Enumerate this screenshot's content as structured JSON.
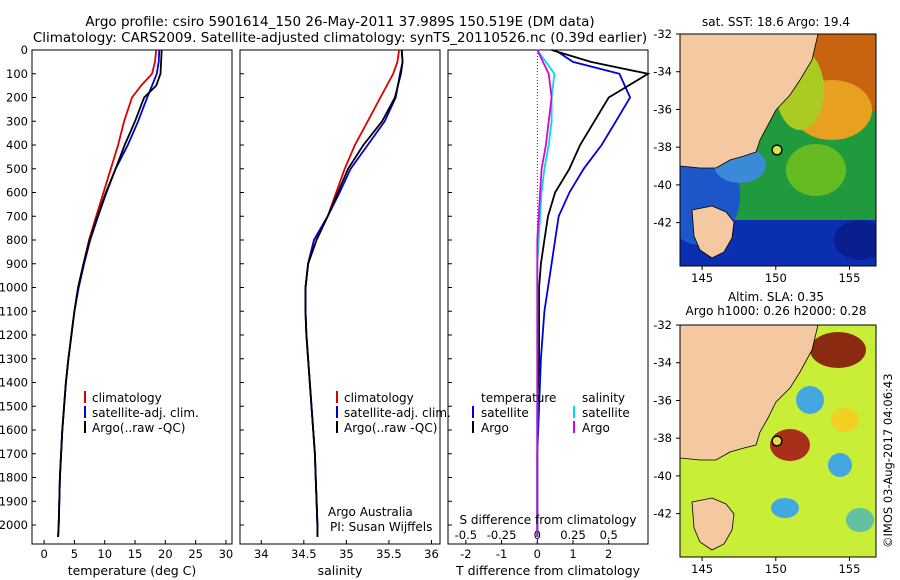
{
  "header": {
    "line1": "Argo profile: csiro 5901614_150 26-May-2011 37.989S 150.519E (DM data)",
    "line2": "Climatology: CARS2009. Satellite-adjusted climatology: synTS_20110526.nc (0.39d earlier)"
  },
  "colors": {
    "climatology": "#dd0000",
    "satellite": "#0000dd",
    "argo": "#000000",
    "salinity_satellite": "#00dddd",
    "salinity_argo": "#dd00dd",
    "land": "#f4c8a0"
  },
  "chart_data": [
    {
      "type": "line",
      "panel": "temperature",
      "xlabel": "temperature (deg C)",
      "ylabel": "",
      "xlim": [
        -2,
        31
      ],
      "ylim": [
        2080,
        0
      ],
      "x_ticks": [
        "0",
        "5",
        "10",
        "15",
        "20",
        "25",
        "30"
      ],
      "y_ticks": [
        "0",
        "100",
        "200",
        "300",
        "400",
        "500",
        "600",
        "700",
        "800",
        "900",
        "1000",
        "1100",
        "1200",
        "1300",
        "1400",
        "1500",
        "1600",
        "1700",
        "1800",
        "1900",
        "2000"
      ],
      "legend": [
        "climatology",
        "satellite-adj. clim.",
        "Argo(..raw -QC)"
      ],
      "series": [
        {
          "name": "climatology",
          "color": "#dd0000",
          "points": [
            [
              18.5,
              0
            ],
            [
              18.3,
              50
            ],
            [
              17.8,
              100
            ],
            [
              16.0,
              150
            ],
            [
              14.5,
              200
            ],
            [
              13.2,
              300
            ],
            [
              12.2,
              400
            ],
            [
              11.0,
              500
            ],
            [
              9.8,
              600
            ],
            [
              8.6,
              700
            ],
            [
              7.4,
              800
            ],
            [
              6.5,
              900
            ],
            [
              5.6,
              1000
            ],
            [
              5.0,
              1100
            ],
            [
              4.5,
              1200
            ],
            [
              4.0,
              1300
            ],
            [
              3.6,
              1400
            ],
            [
              3.3,
              1500
            ],
            [
              3.0,
              1600
            ],
            [
              2.8,
              1700
            ],
            [
              2.6,
              1800
            ],
            [
              2.5,
              1900
            ],
            [
              2.4,
              2000
            ],
            [
              2.3,
              2050
            ]
          ]
        },
        {
          "name": "satellite-adj. clim.",
          "color": "#0000dd",
          "points": [
            [
              19.0,
              0
            ],
            [
              18.9,
              50
            ],
            [
              18.6,
              100
            ],
            [
              17.8,
              150
            ],
            [
              17.0,
              200
            ],
            [
              15.5,
              300
            ],
            [
              13.8,
              400
            ],
            [
              11.8,
              500
            ],
            [
              10.3,
              600
            ],
            [
              8.9,
              700
            ],
            [
              7.6,
              800
            ],
            [
              6.6,
              900
            ],
            [
              5.7,
              1000
            ],
            [
              5.0,
              1100
            ],
            [
              4.5,
              1200
            ],
            [
              4.0,
              1300
            ],
            [
              3.6,
              1400
            ],
            [
              3.3,
              1500
            ],
            [
              3.0,
              1600
            ],
            [
              2.8,
              1700
            ],
            [
              2.6,
              1800
            ],
            [
              2.5,
              1900
            ],
            [
              2.4,
              2000
            ],
            [
              2.3,
              2050
            ]
          ]
        },
        {
          "name": "Argo(..raw -QC)",
          "color": "#000000",
          "points": [
            [
              19.4,
              0
            ],
            [
              19.3,
              50
            ],
            [
              19.2,
              100
            ],
            [
              18.5,
              150
            ],
            [
              16.5,
              200
            ],
            [
              15.0,
              300
            ],
            [
              13.3,
              400
            ],
            [
              11.8,
              500
            ],
            [
              10.2,
              600
            ],
            [
              8.8,
              700
            ],
            [
              7.5,
              800
            ],
            [
              6.5,
              900
            ],
            [
              5.6,
              1000
            ],
            [
              5.0,
              1100
            ],
            [
              4.5,
              1200
            ],
            [
              4.0,
              1300
            ],
            [
              3.6,
              1400
            ],
            [
              3.3,
              1500
            ],
            [
              3.0,
              1600
            ],
            [
              2.8,
              1700
            ],
            [
              2.6,
              1800
            ],
            [
              2.5,
              1900
            ],
            [
              2.4,
              2000
            ],
            [
              2.3,
              2050
            ]
          ]
        }
      ]
    },
    {
      "type": "line",
      "panel": "salinity",
      "xlabel": "salinity",
      "ylabel": "",
      "xlim": [
        33.75,
        36.1
      ],
      "ylim": [
        2080,
        0
      ],
      "x_ticks": [
        "34",
        "34.5",
        "35",
        "35.5",
        "36"
      ],
      "legend": [
        "climatology",
        "satellite-adj. clim.",
        "Argo(..raw -QC)"
      ],
      "annotation": [
        "Argo Australia",
        "PI: Susan Wijffels"
      ],
      "series": [
        {
          "name": "climatology",
          "color": "#dd0000",
          "points": [
            [
              35.62,
              0
            ],
            [
              35.6,
              50
            ],
            [
              35.55,
              100
            ],
            [
              35.4,
              200
            ],
            [
              35.25,
              300
            ],
            [
              35.1,
              400
            ],
            [
              34.98,
              500
            ],
            [
              34.88,
              600
            ],
            [
              34.78,
              700
            ],
            [
              34.62,
              800
            ],
            [
              34.55,
              900
            ],
            [
              34.52,
              1000
            ],
            [
              34.52,
              1100
            ],
            [
              34.53,
              1200
            ],
            [
              34.55,
              1300
            ],
            [
              34.57,
              1400
            ],
            [
              34.59,
              1500
            ],
            [
              34.61,
              1600
            ],
            [
              34.63,
              1700
            ],
            [
              34.64,
              1800
            ],
            [
              34.65,
              1900
            ],
            [
              34.66,
              2000
            ],
            [
              34.66,
              2050
            ]
          ]
        },
        {
          "name": "satellite-adj. clim.",
          "color": "#0000dd",
          "points": [
            [
              35.65,
              0
            ],
            [
              35.66,
              50
            ],
            [
              35.63,
              100
            ],
            [
              35.58,
              200
            ],
            [
              35.45,
              300
            ],
            [
              35.25,
              400
            ],
            [
              35.05,
              500
            ],
            [
              34.92,
              600
            ],
            [
              34.78,
              700
            ],
            [
              34.62,
              800
            ],
            [
              34.55,
              900
            ],
            [
              34.52,
              1000
            ],
            [
              34.52,
              1100
            ],
            [
              34.53,
              1200
            ],
            [
              34.55,
              1300
            ],
            [
              34.57,
              1400
            ],
            [
              34.59,
              1500
            ],
            [
              34.61,
              1600
            ],
            [
              34.63,
              1700
            ],
            [
              34.64,
              1800
            ],
            [
              34.65,
              1900
            ],
            [
              34.66,
              2000
            ],
            [
              34.66,
              2050
            ]
          ]
        },
        {
          "name": "Argo(..raw -QC)",
          "color": "#000000",
          "points": [
            [
              35.65,
              0
            ],
            [
              35.66,
              50
            ],
            [
              35.64,
              100
            ],
            [
              35.57,
              200
            ],
            [
              35.42,
              300
            ],
            [
              35.2,
              400
            ],
            [
              35.02,
              500
            ],
            [
              34.9,
              600
            ],
            [
              34.78,
              700
            ],
            [
              34.65,
              800
            ],
            [
              34.55,
              900
            ],
            [
              34.52,
              1000
            ],
            [
              34.52,
              1100
            ],
            [
              34.53,
              1200
            ],
            [
              34.55,
              1300
            ],
            [
              34.57,
              1400
            ],
            [
              34.59,
              1500
            ],
            [
              34.61,
              1600
            ],
            [
              34.63,
              1700
            ],
            [
              34.64,
              1800
            ],
            [
              34.65,
              1900
            ],
            [
              34.66,
              2000
            ],
            [
              34.66,
              2050
            ]
          ]
        }
      ]
    },
    {
      "type": "line",
      "panel": "difference",
      "xlabel": "T difference from climatology",
      "xlabel_top": "S difference from climatology",
      "xlim": [
        -2.5,
        3.1
      ],
      "xlim_salinity": [
        -0.625,
        0.775
      ],
      "ylim": [
        2080,
        0
      ],
      "x_ticks": [
        "-2",
        "-1",
        "0",
        "1",
        "2"
      ],
      "x_ticks_top": [
        "-0.5",
        "-0.25",
        "0",
        "0.25",
        "0.5"
      ],
      "legend_temperature": {
        "title": "temperature",
        "items": [
          "satellite",
          "Argo"
        ]
      },
      "legend_salinity": {
        "title": "salinity",
        "items": [
          "satellite",
          "Argo"
        ]
      },
      "series": [
        {
          "name": "temperature satellite",
          "color": "#0000dd",
          "points": [
            [
              0.5,
              0
            ],
            [
              1.0,
              50
            ],
            [
              2.3,
              100
            ],
            [
              2.6,
              200
            ],
            [
              2.2,
              300
            ],
            [
              1.8,
              400
            ],
            [
              1.3,
              500
            ],
            [
              0.9,
              600
            ],
            [
              0.6,
              700
            ],
            [
              0.5,
              800
            ],
            [
              0.4,
              900
            ],
            [
              0.3,
              1000
            ],
            [
              0.2,
              1100
            ],
            [
              0.1,
              1300
            ],
            [
              0.05,
              1500
            ],
            [
              0.0,
              1700
            ],
            [
              0.0,
              1900
            ],
            [
              0.0,
              2050
            ]
          ]
        },
        {
          "name": "temperature Argo",
          "color": "#000000",
          "points": [
            [
              0.4,
              0
            ],
            [
              1.5,
              50
            ],
            [
              3.1,
              100
            ],
            [
              2.0,
              200
            ],
            [
              1.6,
              300
            ],
            [
              1.2,
              400
            ],
            [
              0.9,
              500
            ],
            [
              0.5,
              600
            ],
            [
              0.3,
              700
            ],
            [
              0.2,
              800
            ],
            [
              0.1,
              900
            ],
            [
              0.05,
              1000
            ],
            [
              0.05,
              1100
            ],
            [
              0.05,
              1300
            ],
            [
              0.0,
              1500
            ],
            [
              0.0,
              1700
            ],
            [
              0.0,
              1900
            ],
            [
              0.0,
              2050
            ]
          ]
        },
        {
          "name": "salinity satellite",
          "color": "#00dddd",
          "points": [
            [
              0.0,
              0
            ],
            [
              0.06,
              50
            ],
            [
              0.12,
              100
            ],
            [
              0.1,
              200
            ],
            [
              0.1,
              300
            ],
            [
              0.08,
              400
            ],
            [
              0.05,
              500
            ],
            [
              0.03,
              600
            ],
            [
              0.02,
              700
            ],
            [
              0.01,
              800
            ],
            [
              0.0,
              900
            ],
            [
              0.0,
              1100
            ],
            [
              0.0,
              1300
            ],
            [
              0.0,
              1500
            ],
            [
              0.0,
              1700
            ],
            [
              0.0,
              1900
            ],
            [
              0.0,
              2050
            ]
          ]
        },
        {
          "name": "salinity Argo",
          "color": "#dd00dd",
          "points": [
            [
              0.0,
              0
            ],
            [
              0.04,
              50
            ],
            [
              0.08,
              100
            ],
            [
              0.1,
              200
            ],
            [
              0.08,
              300
            ],
            [
              0.06,
              400
            ],
            [
              0.03,
              500
            ],
            [
              0.02,
              600
            ],
            [
              0.01,
              700
            ],
            [
              0.0,
              800
            ],
            [
              0.0,
              900
            ],
            [
              0.0,
              1100
            ],
            [
              0.0,
              1300
            ],
            [
              0.0,
              1500
            ],
            [
              0.0,
              1700
            ],
            [
              0.0,
              1900
            ],
            [
              0.0,
              2050
            ]
          ]
        }
      ]
    },
    {
      "type": "heatmap",
      "panel": "sst-map",
      "title": "sat. SST: 18.6  Argo: 19.4",
      "x_ticks": [
        "145",
        "150",
        "155"
      ],
      "y_ticks": [
        "-32",
        "-34",
        "-36",
        "-38",
        "-40",
        "-42"
      ],
      "xlim": [
        143.5,
        156.8
      ],
      "ylim": [
        -44.3,
        -32
      ],
      "argo_position": [
        150.519,
        -37.989
      ]
    },
    {
      "type": "heatmap",
      "panel": "sla-map",
      "title": "Altim. SLA: 0.35",
      "subtitle": "Argo h1000: 0.26 h2000: 0.28",
      "x_ticks": [
        "145",
        "150",
        "155"
      ],
      "y_ticks": [
        "-32",
        "-34",
        "-36",
        "-38",
        "-40",
        "-42"
      ],
      "xlim": [
        143.5,
        156.8
      ],
      "ylim": [
        -44.3,
        -32
      ],
      "argo_position": [
        150.519,
        -37.989
      ]
    }
  ],
  "credit": "©IMOS 03-Aug-2017 04:06:43"
}
